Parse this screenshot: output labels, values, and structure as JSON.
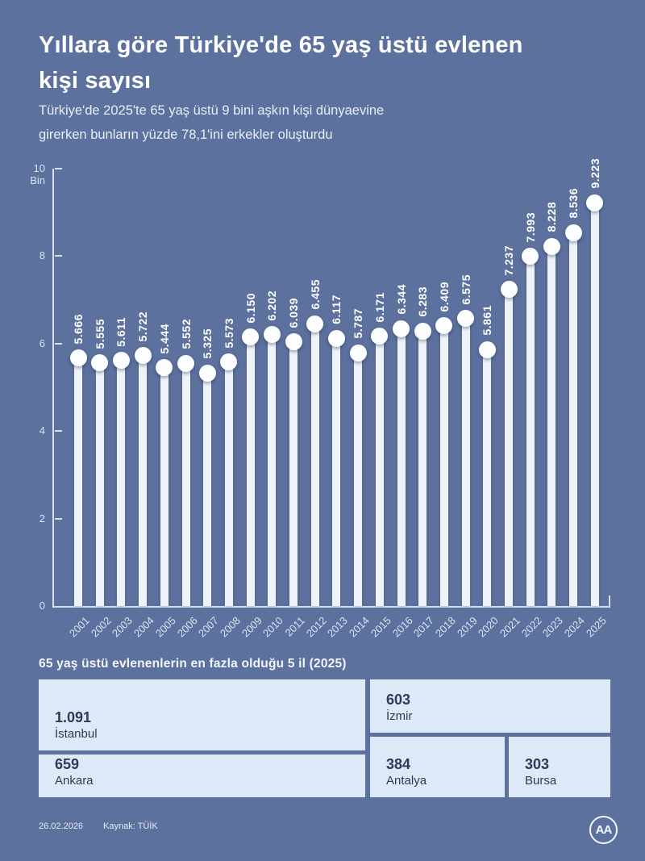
{
  "page": {
    "background_color": "#5d719e",
    "title": "Yıllara göre Türkiye'de 65 yaş üstü evlenen\nkişi sayısı",
    "subtitle": "Türkiye'de 2025'te 65 yaş üstü 9 bini aşkın kişi dünyaevine\ngirerken bunların yüzde 78,1'ini erkekler oluşturdu"
  },
  "chart_data": {
    "type": "bar",
    "style": "lollipop",
    "title": "Yıllara göre Türkiye'de 65 yaş üstü evlenen kişi sayısı",
    "categories": [
      "2001",
      "2002",
      "2003",
      "2004",
      "2005",
      "2006",
      "2007",
      "2008",
      "2009",
      "2010",
      "2011",
      "2012",
      "2013",
      "2014",
      "2015",
      "2016",
      "2017",
      "2018",
      "2019",
      "2020",
      "2021",
      "2022",
      "2023",
      "2024",
      "2025"
    ],
    "values": [
      5666,
      5555,
      5611,
      5722,
      5444,
      5552,
      5325,
      5573,
      6150,
      6202,
      6039,
      6455,
      6117,
      5787,
      6171,
      6344,
      6283,
      6409,
      6575,
      5861,
      7237,
      7993,
      8228,
      8536,
      9223
    ],
    "value_labels": [
      "5.666",
      "5.555",
      "5.611",
      "5.722",
      "5.444",
      "5.552",
      "5.325",
      "5.573",
      "6.150",
      "6.202",
      "6.039",
      "6.455",
      "6.117",
      "5.787",
      "6.171",
      "6.344",
      "6.283",
      "6.409",
      "6.575",
      "5.861",
      "7.237",
      "7.993",
      "8.228",
      "8.536",
      "9.223"
    ],
    "ylabel": "Bin",
    "ylim": [
      0,
      10000
    ],
    "y_ticks_bin": [
      0,
      2,
      4,
      6,
      8,
      10
    ],
    "grid": false,
    "legend": false,
    "marker_color": "#ffffff"
  },
  "city_table": {
    "heading": "65 yaş üstü evlenenlerin en fazla olduğu 5 il (2025)",
    "cell_background": "#dde9f6",
    "text_color": "#2e3a57",
    "cells": [
      {
        "value": "1.091",
        "city": "İstanbul"
      },
      {
        "value": "603",
        "city": "İzmir"
      },
      {
        "value": "659",
        "city": "Ankara"
      },
      {
        "value": "384",
        "city": "Antalya"
      },
      {
        "value": "303",
        "city": "Bursa"
      }
    ]
  },
  "footer": {
    "date": "26.02.2026",
    "source": "Kaynak: TÜİK",
    "logo_text": "AA"
  }
}
